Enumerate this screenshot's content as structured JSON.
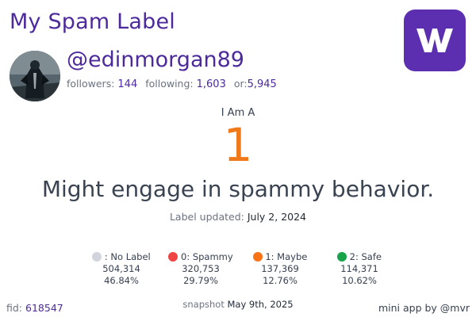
{
  "app": {
    "title": "My Spam Label",
    "logo_letter": "W",
    "logo_color": "#5b2fb0"
  },
  "profile": {
    "username": "@edinmorgan89",
    "followers_label": "followers:",
    "followers": "144",
    "following_label": "following:",
    "following": "1,603",
    "or_label": "or:",
    "or": "5,945"
  },
  "label": {
    "intro": "I Am A",
    "value": "1",
    "value_color": "#f07a1a",
    "description": "Might engage in spammy behavior.",
    "updated_label": "Label updated:",
    "updated_date": "July 2, 2024"
  },
  "legend": [
    {
      "key": "nolabel",
      "name": ": No Label",
      "count": "504,314",
      "percent": "46.84%",
      "color": "#d1d5db"
    },
    {
      "key": "spammy",
      "name": "0: Spammy",
      "count": "320,753",
      "percent": "29.79%",
      "color": "#ef4444"
    },
    {
      "key": "maybe",
      "name": "1: Maybe",
      "count": "137,369",
      "percent": "12.76%",
      "color": "#f97316"
    },
    {
      "key": "safe",
      "name": "2: Safe",
      "count": "114,371",
      "percent": "10.62%",
      "color": "#16a34a"
    }
  ],
  "footer": {
    "fid_label": "fid:",
    "fid": "618547",
    "snapshot_label": "snapshot",
    "snapshot_date": "May 9th, 2025",
    "credit": "mini app by @mvr"
  }
}
